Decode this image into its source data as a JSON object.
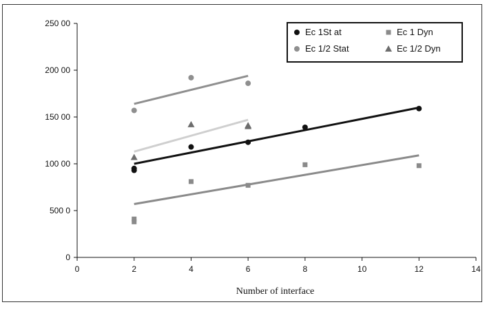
{
  "chart_data": {
    "type": "scatter",
    "title": "",
    "xlabel": "Number of interface",
    "ylabel": "",
    "xlim": [
      0,
      14
    ],
    "ylim": [
      0,
      25000
    ],
    "xticks": [
      0,
      2,
      4,
      6,
      8,
      10,
      12,
      14
    ],
    "yticks": [
      0,
      5000,
      10000,
      15000,
      20000,
      25000
    ],
    "xtick_labels": [
      "0",
      "2",
      "4",
      "6",
      "8",
      "10",
      "12",
      "14"
    ],
    "ytick_labels": [
      "0",
      "500 0",
      "100 00",
      "150 00",
      "200 00",
      "250 00"
    ],
    "grid": false,
    "legend_position": "top-right",
    "series": [
      {
        "name": "Ec 1St at",
        "marker": "circle",
        "color": "#111111",
        "points": [
          [
            2,
            9300
          ],
          [
            2,
            9500
          ],
          [
            4,
            11800
          ],
          [
            6,
            12300
          ],
          [
            8,
            13900
          ],
          [
            12,
            15900
          ]
        ],
        "trendline": [
          [
            2,
            10000
          ],
          [
            12,
            16000
          ]
        ]
      },
      {
        "name": "Ec 1 Dyn",
        "marker": "square",
        "color": "#8a8a8a",
        "points": [
          [
            2,
            3800
          ],
          [
            2,
            4100
          ],
          [
            4,
            8100
          ],
          [
            6,
            7700
          ],
          [
            8,
            9900
          ],
          [
            12,
            9800
          ]
        ],
        "trendline": [
          [
            2,
            5700
          ],
          [
            12,
            10900
          ]
        ]
      },
      {
        "name": "Ec 1/2 Stat",
        "marker": "circle",
        "color": "#8f8f8f",
        "points": [
          [
            2,
            15700
          ],
          [
            4,
            19200
          ],
          [
            6,
            18600
          ]
        ],
        "trendline": [
          [
            2,
            16400
          ],
          [
            6,
            19400
          ]
        ]
      },
      {
        "name": "Ec 1/2  Dyn",
        "marker": "triangle",
        "color": "#6d6d6d",
        "points": [
          [
            2,
            10700
          ],
          [
            4,
            14200
          ],
          [
            6,
            14100
          ],
          [
            6,
            14000
          ]
        ],
        "trendline": [
          [
            2,
            11300
          ],
          [
            6,
            14700
          ]
        ]
      }
    ]
  },
  "trend_colors": [
    "#111111",
    "#8a8a8a",
    "#8f8f8f",
    "#cfcfcf"
  ]
}
